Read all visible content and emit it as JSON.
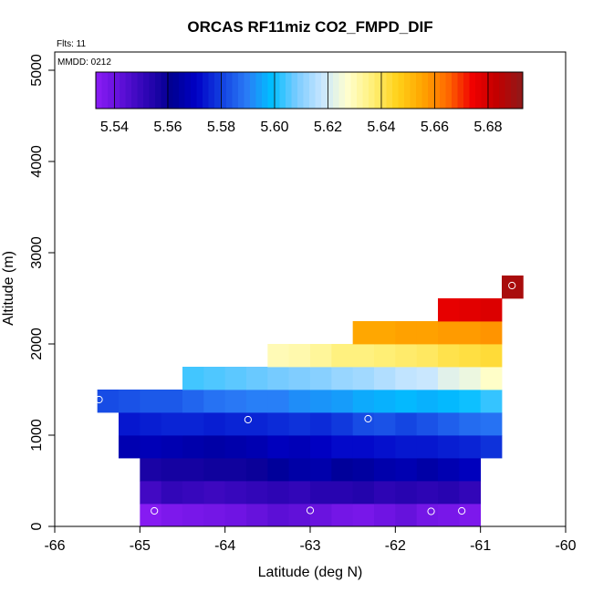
{
  "chart_data": {
    "type": "heatmap",
    "title": "ORCAS RF11miz CO2_FMPD_DIF",
    "xlabel": "Latitude (deg N)",
    "ylabel": "Altitude (m)",
    "xlim": [
      -66,
      -60
    ],
    "ylim": [
      0,
      5200
    ],
    "x_ticks": [
      "-66",
      "-65",
      "-64",
      "-63",
      "-62",
      "-61",
      "-60"
    ],
    "y_ticks": [
      "0",
      "1000",
      "2000",
      "3000",
      "4000",
      "5000"
    ],
    "annotations": {
      "flights": "Flts: 11",
      "mmdd": "MMDD: 0212"
    },
    "colorbar": {
      "min": 5.533,
      "max": 5.693,
      "tick_labels": [
        "5.54",
        "5.56",
        "5.58",
        "5.60",
        "5.62",
        "5.64",
        "5.66",
        "5.68"
      ],
      "tick_values": [
        5.54,
        5.56,
        5.58,
        5.6,
        5.62,
        5.64,
        5.66,
        5.68
      ],
      "colors": [
        "#8B1CF5",
        "#5F10D8",
        "#2E05B5",
        "#000090",
        "#0000C6",
        "#1240E0",
        "#2A7BF6",
        "#00BFFF",
        "#7ACBFF",
        "#C7E6FF",
        "#FFFFD0",
        "#FFF07A",
        "#FFD21A",
        "#FFA500",
        "#FF6A00",
        "#F00000",
        "#C00000",
        "#8E1A1A"
      ]
    },
    "cell_size": {
      "dlat": 0.25,
      "dalt": 250
    },
    "rows": [
      {
        "alt": 0,
        "lat_start": -65.0,
        "values": [
          5.534,
          5.536,
          5.537,
          5.538,
          5.539,
          5.541,
          5.543,
          5.542,
          5.54,
          5.538,
          5.537,
          5.539,
          5.541,
          5.538,
          5.537,
          5.536
        ]
      },
      {
        "alt": 250,
        "lat_start": -65.0,
        "values": [
          5.548,
          5.551,
          5.55,
          5.549,
          5.55,
          5.551,
          5.552,
          5.551,
          5.553,
          5.553,
          5.554,
          5.552,
          5.553,
          5.552,
          5.553,
          5.551
        ]
      },
      {
        "alt": 500,
        "lat_start": -65.0,
        "values": [
          5.556,
          5.557,
          5.557,
          5.558,
          5.558,
          5.559,
          5.563,
          5.565,
          5.566,
          5.563,
          5.564,
          5.566,
          5.567,
          5.565,
          5.567,
          5.569
        ]
      },
      {
        "alt": 750,
        "lat_start": -65.25,
        "values": [
          5.567,
          5.568,
          5.567,
          5.566,
          5.565,
          5.566,
          5.567,
          5.569,
          5.568,
          5.57,
          5.572,
          5.572,
          5.573,
          5.574,
          5.574,
          5.575,
          5.576,
          5.578
        ]
      },
      {
        "alt": 1000,
        "lat_start": -65.25,
        "values": [
          5.574,
          5.575,
          5.576,
          5.576,
          5.575,
          5.576,
          5.576,
          5.577,
          5.578,
          5.577,
          5.579,
          5.582,
          5.583,
          5.581,
          5.583,
          5.585,
          5.587,
          5.588
        ]
      },
      {
        "alt": 1250,
        "lat_start": -65.5,
        "values": [
          5.582,
          5.583,
          5.584,
          5.584,
          5.586,
          5.588,
          5.589,
          5.59,
          5.59,
          5.592,
          5.593,
          5.594,
          5.596,
          5.597,
          5.598,
          5.597,
          5.598,
          5.6,
          5.603
        ]
      },
      {
        "alt": 1500,
        "lat_start": -64.5,
        "values": [
          5.604,
          5.605,
          5.606,
          5.607,
          5.608,
          5.609,
          5.61,
          5.612,
          5.613,
          5.615,
          5.617,
          5.618,
          5.622,
          5.624,
          5.628
        ]
      },
      {
        "alt": 1750,
        "lat_start": -63.5,
        "values": [
          5.63,
          5.631,
          5.633,
          5.636,
          5.636,
          5.637,
          5.638,
          5.639,
          5.641,
          5.642,
          5.643
        ]
      },
      {
        "alt": 2000,
        "lat_start": -62.5,
        "values": [
          5.655,
          5.655,
          5.656,
          5.656,
          5.657,
          5.657,
          5.658
        ]
      },
      {
        "alt": 2250,
        "lat_start": -61.5,
        "values": [
          5.676,
          5.677,
          5.678
        ]
      },
      {
        "alt": 2500,
        "lat_start": -60.75,
        "values": [
          5.688
        ]
      }
    ],
    "sample_points": [
      {
        "lat": -65.48,
        "alt": 1390
      },
      {
        "lat": -63.73,
        "alt": 1170
      },
      {
        "lat": -62.32,
        "alt": 1180
      },
      {
        "lat": -64.83,
        "alt": 170
      },
      {
        "lat": -63.0,
        "alt": 175
      },
      {
        "lat": -61.58,
        "alt": 165
      },
      {
        "lat": -61.22,
        "alt": 170
      },
      {
        "lat": -60.63,
        "alt": 2640
      }
    ]
  }
}
